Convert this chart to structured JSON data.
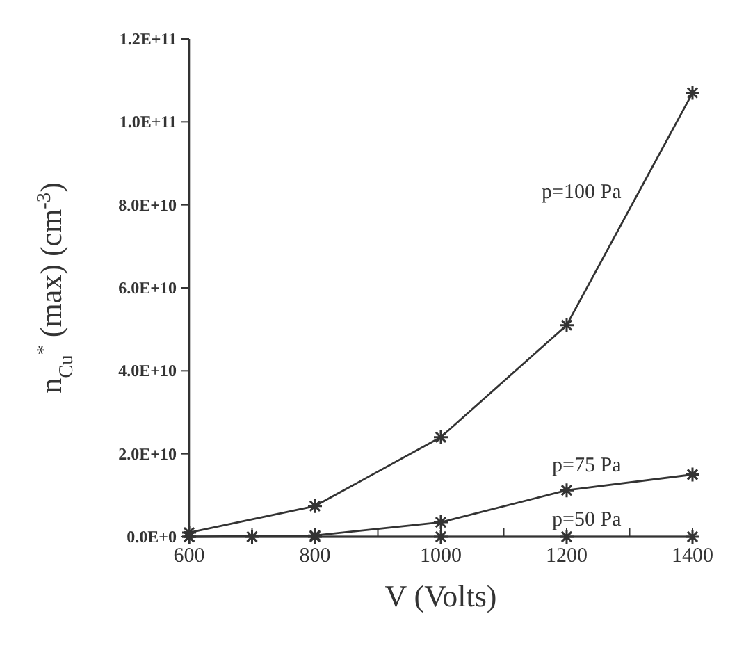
{
  "chart_data": {
    "type": "line",
    "xlabel": "V (Volts)",
    "ylabel": "n$_{Cu}$$^{*}$ (max) (cm$^{-3}$)",
    "xlim": [
      600,
      1400
    ],
    "xticks": [
      600,
      {
        "value": 700,
        "label": null
      },
      800,
      {
        "value": 900,
        "label": null
      },
      1000,
      {
        "value": 1100,
        "label": null
      },
      1200,
      {
        "value": 1300,
        "label": null
      },
      1400
    ],
    "ylim": [
      0,
      120000000000
    ],
    "yticks": [
      {
        "value": 0,
        "label": "0.0E+0"
      },
      {
        "value": 20000000000,
        "label": "2.0E+10"
      },
      {
        "value": 40000000000,
        "label": "4.0E+10"
      },
      {
        "value": 60000000000,
        "label": "6.0E+10"
      },
      {
        "value": 80000000000,
        "label": "8.0E+10"
      },
      {
        "value": 100000000000,
        "label": "1.0E+11"
      },
      {
        "value": 120000000000,
        "label": "1.2E+11"
      }
    ],
    "marker": "cross",
    "line_style": "solid",
    "grid": false,
    "series": [
      {
        "name": "p=100 Pa",
        "color": "#333333",
        "x": [
          600,
          800,
          1000,
          1200,
          1400
        ],
        "values": [
          1000000000,
          7400000000,
          24000000000,
          51000000000,
          107000000000
        ]
      },
      {
        "name": "p=75 Pa",
        "color": "#333333",
        "x": [
          600,
          800,
          1000,
          1200,
          1400
        ],
        "values": [
          0,
          300000000,
          3500000000,
          11200000000,
          15000000000
        ]
      },
      {
        "name": "p=50 Pa",
        "color": "#333333",
        "x": [
          600,
          700,
          800,
          1000,
          1200,
          1400
        ],
        "values": [
          0,
          0,
          0,
          0,
          0,
          0
        ]
      }
    ]
  }
}
